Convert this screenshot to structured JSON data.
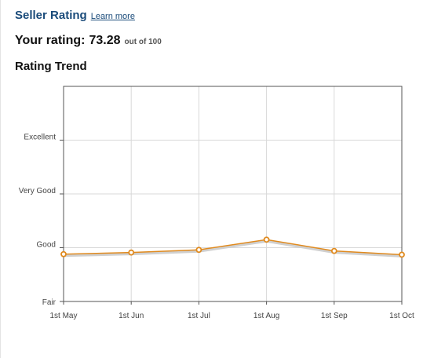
{
  "header": {
    "title": "Seller Rating",
    "learn_more": "Learn more"
  },
  "rating": {
    "label": "Your rating:",
    "value": "73.28",
    "out_of": "out of 100"
  },
  "trend": {
    "title": "Rating Trend"
  },
  "colors": {
    "title": "#1a4b7a",
    "line": "#e08a1e",
    "grid": "#d8d8d8"
  },
  "chart_data": {
    "type": "line",
    "title": "Rating Trend",
    "x": [
      "1st May",
      "1st Jun",
      "1st Jul",
      "1st Aug",
      "1st Sep",
      "1st Oct"
    ],
    "y_levels": [
      "Fair",
      "Good",
      "Very Good",
      "Excellent"
    ],
    "y_level_values": [
      0,
      1,
      2,
      3
    ],
    "ylim": [
      0,
      4
    ],
    "series": [
      {
        "values": [
          0.88,
          0.91,
          0.96,
          1.15,
          0.94,
          0.87
        ]
      }
    ],
    "grid": true,
    "legend": "none"
  }
}
